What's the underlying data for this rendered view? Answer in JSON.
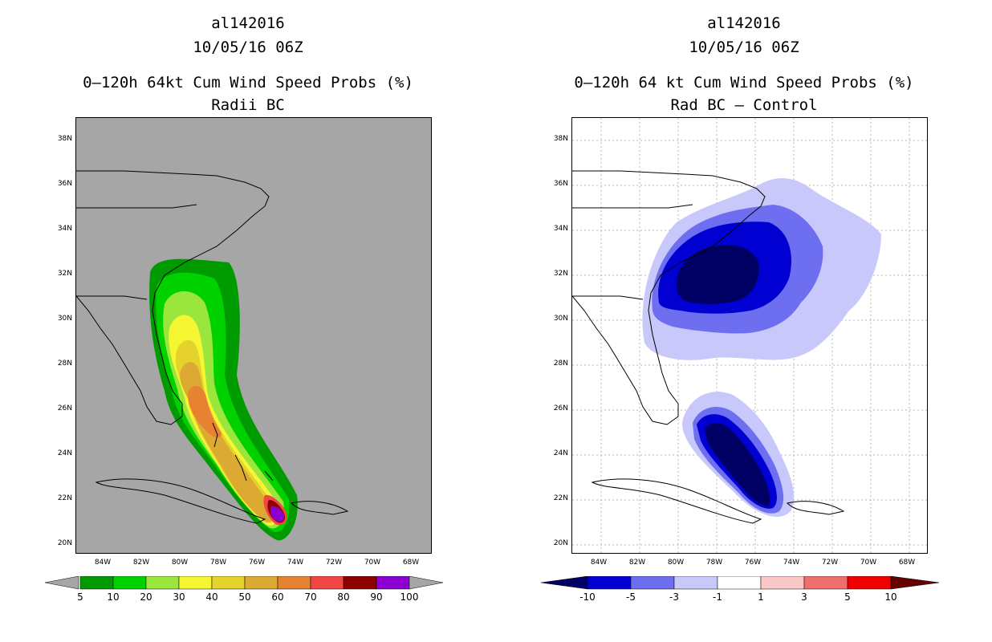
{
  "left": {
    "title_id": "al142016",
    "title_date": "10/05/16 06Z",
    "title_main": "0–120h 64kt Cum Wind Speed Probs (%)",
    "title_sub": "Radii BC",
    "background": "#a6a6a6",
    "lat_labels": [
      "38N",
      "36N",
      "34N",
      "32N",
      "30N",
      "28N",
      "26N",
      "24N",
      "22N",
      "20N"
    ],
    "lon_labels": [
      "84W",
      "82W",
      "80W",
      "78W",
      "76W",
      "74W",
      "72W",
      "70W",
      "68W"
    ],
    "colorbar": {
      "labels": [
        "5",
        "10",
        "20",
        "30",
        "40",
        "50",
        "60",
        "70",
        "80",
        "90",
        "100"
      ],
      "colors": [
        "#009b00",
        "#00d200",
        "#9be63c",
        "#f5f532",
        "#e6d22d",
        "#dcaa32",
        "#e68232",
        "#f04646",
        "#8c0000",
        "#8c00d2"
      ],
      "end_color": "#a6a6a6"
    }
  },
  "right": {
    "title_id": "al142016",
    "title_date": "10/05/16 06Z",
    "title_main": "0–120h 64 kt Cum Wind Speed Probs (%)",
    "title_sub": "Rad BC – Control",
    "background": "#ffffff",
    "lat_labels": [
      "38N",
      "36N",
      "34N",
      "32N",
      "30N",
      "28N",
      "26N",
      "24N",
      "22N",
      "20N"
    ],
    "lon_labels": [
      "84W",
      "82W",
      "80W",
      "78W",
      "76W",
      "74W",
      "72W",
      "70W",
      "68W"
    ],
    "colorbar": {
      "labels": [
        "-10",
        "-5",
        "-3",
        "-1",
        "1",
        "3",
        "5",
        "10"
      ],
      "colors": [
        "#0000d2",
        "#6e6ef0",
        "#c8c8fa",
        "#ffffff",
        "#fac8c8",
        "#f06e6e",
        "#f00000"
      ],
      "low_end": "#000064",
      "high_end": "#640000"
    }
  }
}
